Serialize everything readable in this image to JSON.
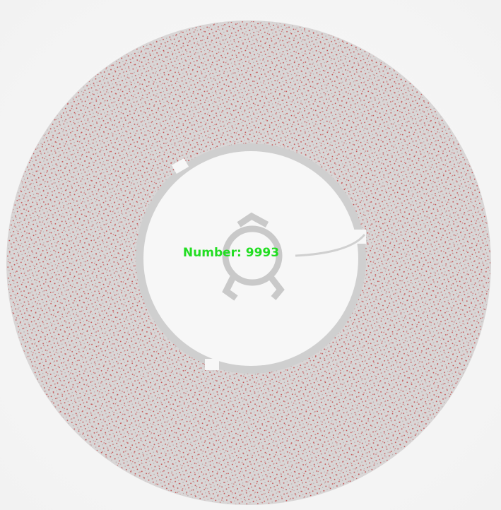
{
  "overlay": {
    "label": "Number: 9993"
  }
}
